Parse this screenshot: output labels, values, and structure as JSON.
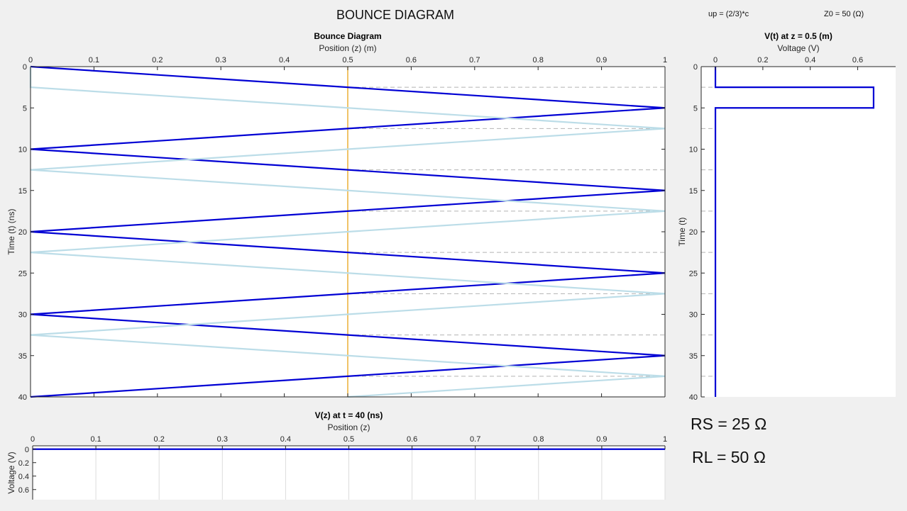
{
  "app": {
    "title": "BOUNCE DIAGRAM",
    "up_label": "up = (2/3)*c",
    "z0_label": "Z0 = 50 (Ω)",
    "rs_label": "RS = 25 Ω",
    "rl_label": "RL = 50 Ω"
  },
  "colors": {
    "forward": "#0000d4",
    "reflected": "#bcdde8",
    "probe": "#e8a317",
    "grid_dash": "#b3b3b3",
    "axes_bg": "#ffffff"
  },
  "chart_data": [
    {
      "type": "line",
      "title": "Bounce Diagram",
      "xlabel": "Position (z) (m)",
      "ylabel": "Time (t) (ns)",
      "xlim": [
        0,
        1
      ],
      "ylim": [
        0,
        40
      ],
      "y_reversed": true,
      "x_axis_location": "top",
      "xticks": [
        "0",
        "0.1",
        "0.2",
        "0.3",
        "0.4",
        "0.5",
        "0.6",
        "0.7",
        "0.8",
        "0.9",
        "1"
      ],
      "yticks": [
        "0",
        "5",
        "10",
        "15",
        "20",
        "25",
        "30",
        "35",
        "40"
      ],
      "probe_z": 0.5,
      "series": [
        {
          "role": "dark",
          "x": [
            0,
            1,
            0,
            1,
            0,
            1,
            0,
            1,
            0
          ],
          "y": [
            0,
            5,
            10,
            15,
            20,
            25,
            30,
            35,
            40
          ]
        },
        {
          "role": "light",
          "x": [
            0,
            0,
            1,
            0,
            1,
            0,
            1,
            0,
            1,
            0.5
          ],
          "y": [
            0,
            2.5,
            7.5,
            12.5,
            17.5,
            22.5,
            27.5,
            32.5,
            37.5,
            40
          ]
        }
      ],
      "dashed_times": [
        2.5,
        7.5,
        12.5,
        17.5,
        22.5,
        27.5,
        32.5,
        37.5
      ]
    },
    {
      "type": "line",
      "title": "V(t) at z = 0.5 (m)",
      "xlabel": "Voltage (V)",
      "ylabel": "Time (t)",
      "xlim": [
        -0.06,
        0.76
      ],
      "ylim": [
        0,
        40
      ],
      "y_reversed": true,
      "x_axis_location": "top",
      "xticks": [
        "0",
        "0.2",
        "0.4",
        "0.6"
      ],
      "xtick_values": [
        0,
        0.2,
        0.4,
        0.6
      ],
      "yticks": [
        "0",
        "5",
        "10",
        "15",
        "20",
        "25",
        "30",
        "35",
        "40"
      ],
      "series": [
        {
          "role": "voltage",
          "x": [
            0,
            0,
            0.667,
            0.667,
            0,
            0
          ],
          "y": [
            0,
            2.5,
            2.5,
            5,
            5,
            40
          ]
        }
      ],
      "dashed_times": [
        2.5,
        7.5,
        12.5,
        17.5,
        22.5,
        27.5,
        32.5,
        37.5
      ]
    },
    {
      "type": "line",
      "title": "V(z) at t = 40 (ns)",
      "xlabel": "Position (z)",
      "ylabel": "Voltage (V)",
      "xlim": [
        0,
        1
      ],
      "ylim": [
        -0.05,
        0.75
      ],
      "y_reversed": true,
      "x_axis_location": "top",
      "xticks": [
        "0",
        "0.1",
        "0.2",
        "0.3",
        "0.4",
        "0.5",
        "0.6",
        "0.7",
        "0.8",
        "0.9",
        "1"
      ],
      "yticks": [
        "0",
        "0.2",
        "0.4",
        "0.6"
      ],
      "ytick_values": [
        0,
        0.2,
        0.4,
        0.6
      ],
      "series": [
        {
          "role": "profile",
          "x": [
            0,
            1
          ],
          "y": [
            0,
            0
          ]
        }
      ]
    }
  ]
}
